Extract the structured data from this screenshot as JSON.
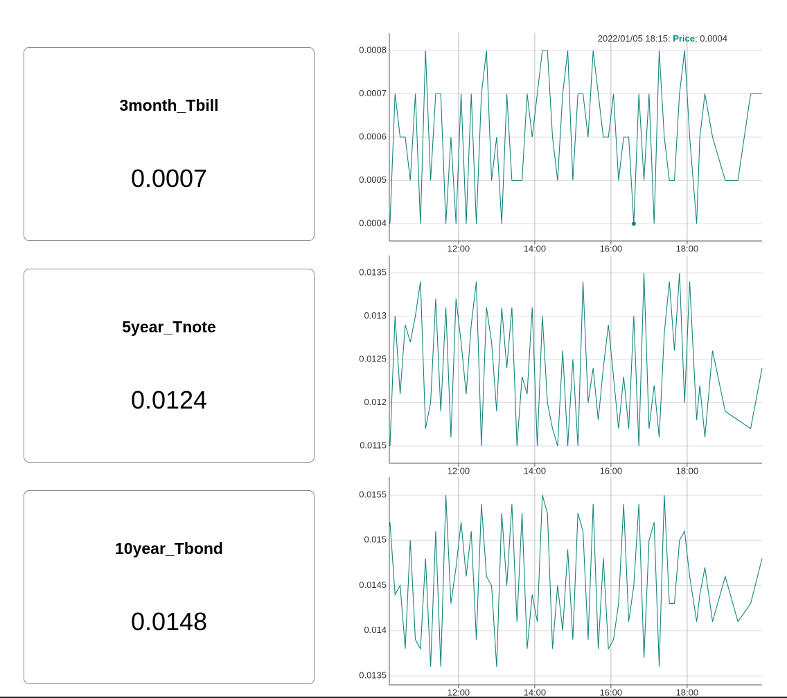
{
  "cards": [
    {
      "title": "3month_Tbill",
      "value": "0.0007"
    },
    {
      "title": "5year_Tnote",
      "value": "0.0124"
    },
    {
      "title": "10year_Tbond",
      "value": "0.0148"
    }
  ],
  "chart_data": [
    {
      "type": "line",
      "color": "#14857f",
      "grid": true,
      "x": [
        "10:12",
        "10:20",
        "10:28",
        "10:36",
        "10:44",
        "10:52",
        "11:00",
        "11:08",
        "11:16",
        "11:24",
        "11:32",
        "11:40",
        "11:48",
        "11:56",
        "12:04",
        "12:12",
        "12:20",
        "12:28",
        "12:36",
        "12:44",
        "12:52",
        "13:00",
        "13:08",
        "13:16",
        "13:24",
        "13:32",
        "13:40",
        "13:48",
        "13:56",
        "14:04",
        "14:12",
        "14:20",
        "14:28",
        "14:36",
        "14:44",
        "14:52",
        "15:00",
        "15:08",
        "15:16",
        "15:24",
        "15:32",
        "15:40",
        "15:48",
        "15:56",
        "16:04",
        "16:12",
        "16:20",
        "16:28",
        "16:36",
        "16:44",
        "16:52",
        "17:00",
        "17:08",
        "17:16",
        "17:24",
        "17:32",
        "17:40",
        "17:48",
        "17:56",
        "18:04",
        "18:15",
        "18:20",
        "18:28",
        "18:40",
        "19:00",
        "19:20",
        "19:40",
        "19:58"
      ],
      "values": [
        0.0004,
        0.0007,
        0.0006,
        0.0006,
        0.0005,
        0.0007,
        0.0004,
        0.0008,
        0.0005,
        0.0007,
        0.0007,
        0.0004,
        0.0006,
        0.0004,
        0.0007,
        0.0004,
        0.0007,
        0.0004,
        0.0007,
        0.0008,
        0.0005,
        0.0006,
        0.0004,
        0.0007,
        0.0005,
        0.0005,
        0.0005,
        0.0007,
        0.0006,
        0.0007,
        0.0008,
        0.0008,
        0.0006,
        0.0005,
        0.0007,
        0.0008,
        0.0005,
        0.0007,
        0.0007,
        0.0006,
        0.0008,
        0.0007,
        0.0006,
        0.0006,
        0.0007,
        0.0005,
        0.0006,
        0.0006,
        0.0004,
        0.0007,
        0.0005,
        0.0007,
        0.0004,
        0.0008,
        0.0006,
        0.0005,
        0.0005,
        0.0007,
        0.0008,
        0.0006,
        0.0004,
        0.0006,
        0.0007,
        0.0006,
        0.0005,
        0.0005,
        0.0007,
        0.0007
      ],
      "xlim": [
        "10:11",
        "19:58"
      ],
      "xticks": [
        "12:00",
        "14:00",
        "16:00",
        "18:00"
      ],
      "ylim": [
        0.00036,
        0.00084
      ],
      "yticks": [
        0.0004,
        0.0005,
        0.0006,
        0.0007,
        0.0008
      ],
      "tooltip": {
        "time": "2022/01/05 18:15:",
        "label": "Price",
        "value": 0.0004
      }
    },
    {
      "type": "line",
      "color": "#14857f",
      "grid": true,
      "x": [
        "10:12",
        "10:20",
        "10:28",
        "10:36",
        "10:44",
        "10:52",
        "11:00",
        "11:08",
        "11:16",
        "11:24",
        "11:32",
        "11:40",
        "11:48",
        "11:56",
        "12:04",
        "12:12",
        "12:20",
        "12:28",
        "12:36",
        "12:44",
        "12:52",
        "13:00",
        "13:08",
        "13:16",
        "13:24",
        "13:32",
        "13:40",
        "13:48",
        "13:56",
        "14:04",
        "14:12",
        "14:20",
        "14:28",
        "14:36",
        "14:44",
        "14:52",
        "15:00",
        "15:08",
        "15:16",
        "15:24",
        "15:32",
        "15:40",
        "15:48",
        "15:56",
        "16:04",
        "16:12",
        "16:20",
        "16:28",
        "16:36",
        "16:44",
        "16:52",
        "17:00",
        "17:08",
        "17:16",
        "17:24",
        "17:32",
        "17:40",
        "17:48",
        "17:56",
        "18:04",
        "18:15",
        "18:20",
        "18:28",
        "18:40",
        "19:00",
        "19:20",
        "19:40",
        "19:58"
      ],
      "values": [
        0.0115,
        0.013,
        0.0121,
        0.0129,
        0.0127,
        0.013,
        0.0134,
        0.0117,
        0.012,
        0.0132,
        0.0119,
        0.0131,
        0.0116,
        0.0132,
        0.0127,
        0.0121,
        0.0129,
        0.0134,
        0.0115,
        0.0131,
        0.0127,
        0.0119,
        0.0131,
        0.0124,
        0.0131,
        0.0115,
        0.0123,
        0.0121,
        0.0131,
        0.0115,
        0.013,
        0.012,
        0.0117,
        0.0115,
        0.0126,
        0.0115,
        0.0125,
        0.0115,
        0.0134,
        0.012,
        0.0124,
        0.0118,
        0.0124,
        0.0129,
        0.0123,
        0.0117,
        0.0123,
        0.0117,
        0.013,
        0.0115,
        0.0135,
        0.0117,
        0.0122,
        0.0116,
        0.0128,
        0.0134,
        0.0126,
        0.0135,
        0.012,
        0.0134,
        0.0118,
        0.0122,
        0.0116,
        0.0126,
        0.0119,
        0.0118,
        0.0117,
        0.0124
      ],
      "xlim": [
        "10:11",
        "19:58"
      ],
      "xticks": [
        "12:00",
        "14:00",
        "16:00",
        "18:00"
      ],
      "ylim": [
        0.0113,
        0.0137
      ],
      "yticks": [
        0.0115,
        0.012,
        0.0125,
        0.013,
        0.0135
      ]
    },
    {
      "type": "line",
      "color": "#14857f",
      "grid": true,
      "x": [
        "10:12",
        "10:20",
        "10:28",
        "10:36",
        "10:44",
        "10:52",
        "11:00",
        "11:08",
        "11:16",
        "11:24",
        "11:32",
        "11:40",
        "11:48",
        "11:56",
        "12:04",
        "12:12",
        "12:20",
        "12:28",
        "12:36",
        "12:44",
        "12:52",
        "13:00",
        "13:08",
        "13:16",
        "13:24",
        "13:32",
        "13:40",
        "13:48",
        "13:56",
        "14:04",
        "14:12",
        "14:20",
        "14:28",
        "14:36",
        "14:44",
        "14:52",
        "15:00",
        "15:08",
        "15:16",
        "15:24",
        "15:32",
        "15:40",
        "15:48",
        "15:56",
        "16:04",
        "16:12",
        "16:20",
        "16:28",
        "16:36",
        "16:44",
        "16:52",
        "17:00",
        "17:08",
        "17:16",
        "17:24",
        "17:32",
        "17:40",
        "17:48",
        "17:56",
        "18:04",
        "18:15",
        "18:20",
        "18:28",
        "18:40",
        "19:00",
        "19:20",
        "19:40",
        "19:58"
      ],
      "values": [
        0.0152,
        0.0144,
        0.0145,
        0.0138,
        0.015,
        0.0139,
        0.0138,
        0.0148,
        0.0136,
        0.0151,
        0.0136,
        0.0155,
        0.0143,
        0.0147,
        0.0152,
        0.0146,
        0.0151,
        0.0139,
        0.0154,
        0.0146,
        0.0145,
        0.0136,
        0.0153,
        0.0145,
        0.0154,
        0.0141,
        0.0153,
        0.0138,
        0.0144,
        0.0141,
        0.0155,
        0.0153,
        0.0138,
        0.0145,
        0.014,
        0.0149,
        0.0139,
        0.0153,
        0.0151,
        0.0139,
        0.0154,
        0.0138,
        0.0148,
        0.0138,
        0.0139,
        0.0143,
        0.0154,
        0.0141,
        0.0145,
        0.0154,
        0.0137,
        0.015,
        0.0152,
        0.0136,
        0.0155,
        0.0143,
        0.0143,
        0.015,
        0.0151,
        0.0146,
        0.0141,
        0.0144,
        0.0147,
        0.0141,
        0.0146,
        0.0141,
        0.0143,
        0.0148
      ],
      "xlim": [
        "10:11",
        "19:58"
      ],
      "xticks": [
        "12:00",
        "14:00",
        "16:00",
        "18:00"
      ],
      "ylim": [
        0.0134,
        0.0157
      ],
      "yticks": [
        0.0135,
        0.014,
        0.0145,
        0.015,
        0.0155
      ]
    }
  ]
}
